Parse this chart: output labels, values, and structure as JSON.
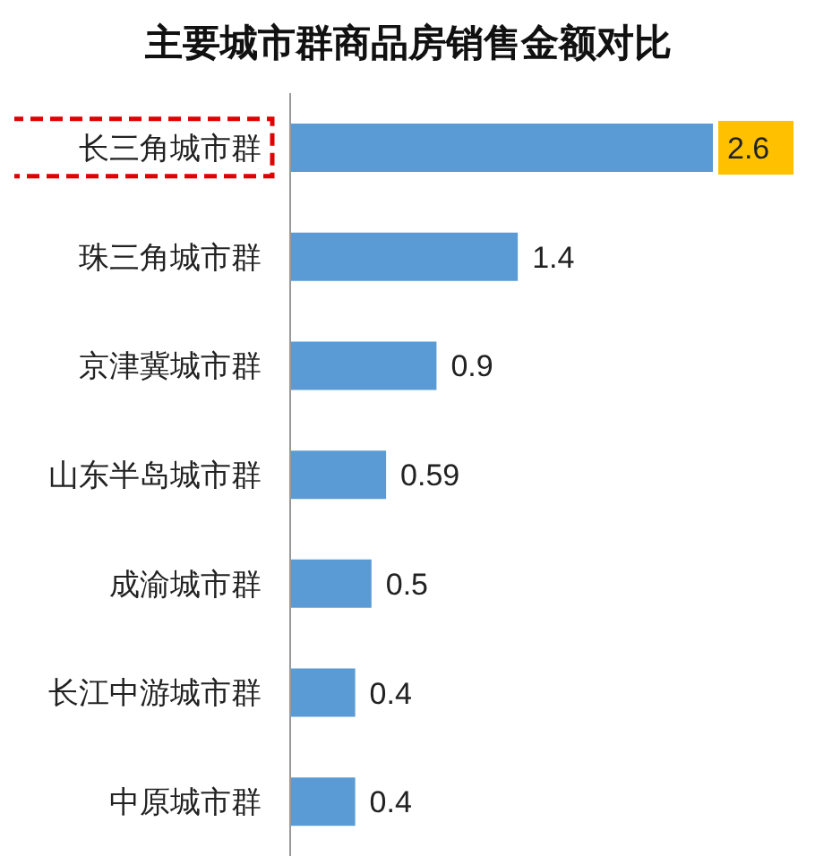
{
  "chart_data": {
    "type": "bar",
    "orientation": "horizontal",
    "title": "主要城市群商品房销售金额对比",
    "categories": [
      "长三角城市群",
      "珠三角城市群",
      "京津冀城市群",
      "山东半岛城市群",
      "成渝城市群",
      "长江中游城市群",
      "中原城市群"
    ],
    "values": [
      2.6,
      1.4,
      0.9,
      0.59,
      0.5,
      0.4,
      0.4
    ],
    "value_labels": [
      "2.6",
      "1.4",
      "0.9",
      "0.59",
      "0.5",
      "0.4",
      "0.4"
    ],
    "color": "#5b9bd5",
    "tick_labels": "y"
  }
}
